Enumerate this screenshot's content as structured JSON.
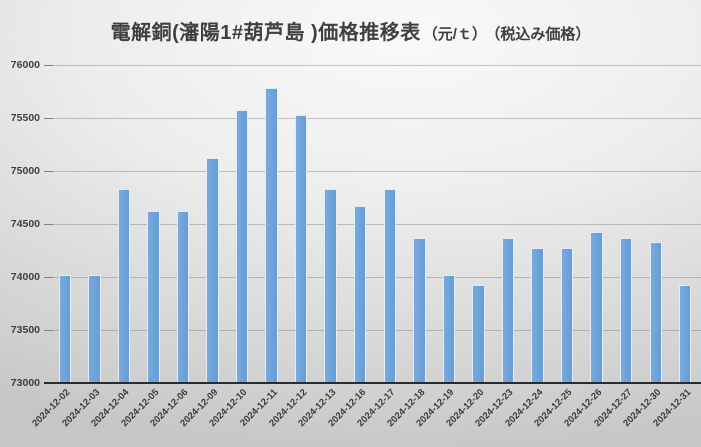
{
  "title": {
    "main": "電解銅(瀋陽1#葫芦島 )価格推移表",
    "unit": "（元/ｔ）",
    "note": "（税込み価格）"
  },
  "chart_data": {
    "type": "bar",
    "title": "電解銅(瀋陽1#葫芦島 )価格推移表（元/ｔ）（税込み価格）",
    "categories": [
      "2024-12-02",
      "2024-12-03",
      "2024-12-04",
      "2024-12-05",
      "2024-12-06",
      "2024-12-09",
      "2024-12-10",
      "2024-12-11",
      "2024-12-12",
      "2024-12-13",
      "2024-12-16",
      "2024-12-17",
      "2024-12-18",
      "2024-12-19",
      "2024-12-20",
      "2024-12-23",
      "2024-12-24",
      "2024-12-25",
      "2024-12-26",
      "2024-12-27",
      "2024-12-30",
      "2024-12-31"
    ],
    "values": [
      74020,
      74020,
      74830,
      74620,
      74620,
      75120,
      75580,
      75780,
      75530,
      74830,
      74670,
      74830,
      74370,
      74020,
      73920,
      74370,
      74270,
      74270,
      74420,
      74370,
      74330,
      73920
    ],
    "xlabel": "",
    "ylabel": "",
    "ylim": [
      73000,
      76000
    ],
    "ytick_interval": 500,
    "yticks": [
      76000,
      75500,
      75000,
      74500,
      74000,
      73500,
      73000
    ],
    "bar_color": "#6CA1D9",
    "grid": true,
    "legend": false
  }
}
